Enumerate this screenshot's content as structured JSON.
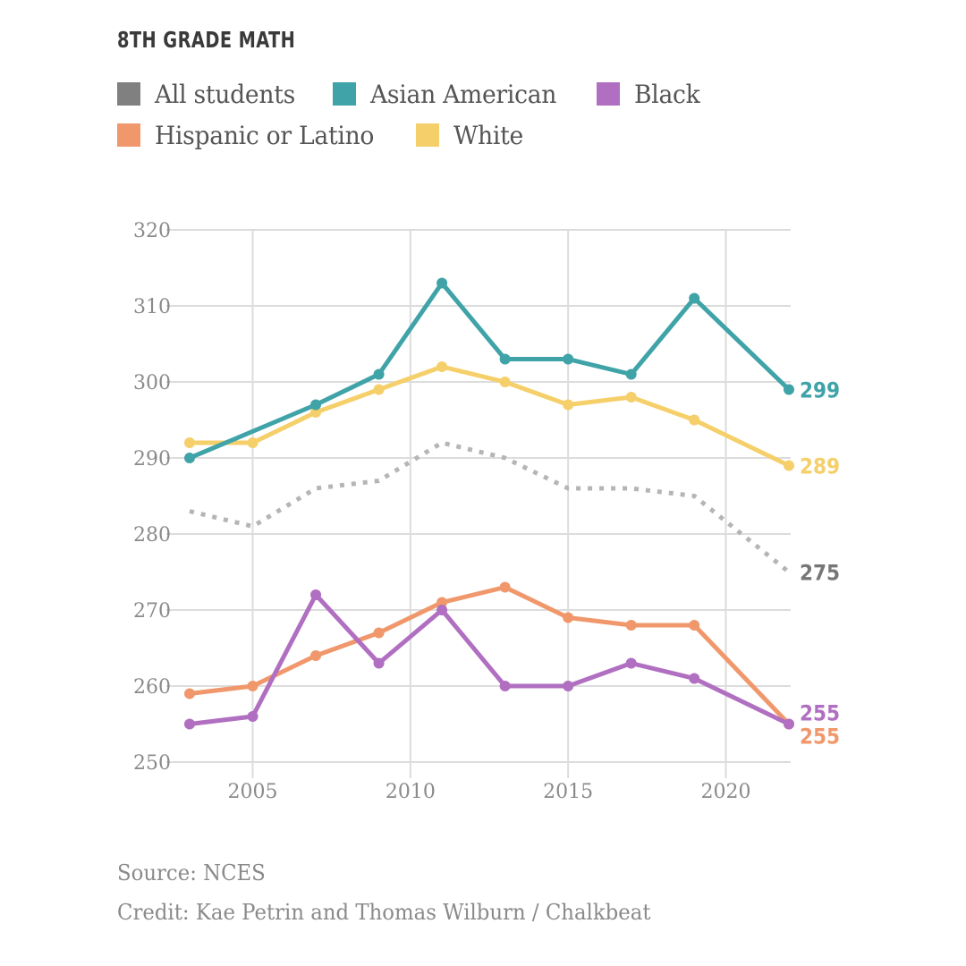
{
  "chart_data": {
    "type": "line",
    "title": "8TH GRADE MATH",
    "xlabel": "",
    "ylabel": "",
    "xlim": [
      2003,
      2022
    ],
    "ylim": [
      250,
      320
    ],
    "grid": true,
    "x_ticks": [
      2005,
      2010,
      2015,
      2020
    ],
    "y_ticks": [
      250,
      260,
      270,
      280,
      290,
      300,
      310,
      320
    ],
    "legend_position": "top-left",
    "series": [
      {
        "name": "All students",
        "color": "#808080",
        "style": "dotted",
        "markers": false,
        "points": [
          [
            2003,
            283
          ],
          [
            2005,
            281
          ],
          [
            2007,
            286
          ],
          [
            2009,
            287
          ],
          [
            2011,
            292
          ],
          [
            2013,
            290
          ],
          [
            2015,
            286
          ],
          [
            2017,
            286
          ],
          [
            2019,
            285
          ],
          [
            2022,
            275
          ]
        ],
        "end_label": "275"
      },
      {
        "name": "Asian American",
        "color": "#3fa3a8",
        "style": "solid",
        "markers": true,
        "points": [
          [
            2003,
            290
          ],
          [
            2007,
            297
          ],
          [
            2009,
            301
          ],
          [
            2011,
            313
          ],
          [
            2013,
            303
          ],
          [
            2015,
            303
          ],
          [
            2017,
            301
          ],
          [
            2019,
            311
          ],
          [
            2022,
            299
          ]
        ],
        "end_label": "299"
      },
      {
        "name": "Black",
        "color": "#b06fc0",
        "style": "solid",
        "markers": true,
        "points": [
          [
            2003,
            255
          ],
          [
            2005,
            256
          ],
          [
            2007,
            272
          ],
          [
            2009,
            263
          ],
          [
            2011,
            270
          ],
          [
            2013,
            260
          ],
          [
            2015,
            260
          ],
          [
            2017,
            263
          ],
          [
            2019,
            261
          ],
          [
            2022,
            255
          ]
        ],
        "end_label": "255"
      },
      {
        "name": "Hispanic or Latino",
        "color": "#f0986c",
        "style": "solid",
        "markers": true,
        "points": [
          [
            2003,
            259
          ],
          [
            2005,
            260
          ],
          [
            2007,
            264
          ],
          [
            2009,
            267
          ],
          [
            2011,
            271
          ],
          [
            2013,
            273
          ],
          [
            2015,
            269
          ],
          [
            2017,
            268
          ],
          [
            2019,
            268
          ],
          [
            2022,
            255
          ]
        ],
        "end_label": "255"
      },
      {
        "name": "White",
        "color": "#f5cf6a",
        "style": "solid",
        "markers": true,
        "points": [
          [
            2003,
            292
          ],
          [
            2005,
            292
          ],
          [
            2007,
            296
          ],
          [
            2009,
            299
          ],
          [
            2011,
            302
          ],
          [
            2013,
            300
          ],
          [
            2015,
            297
          ],
          [
            2017,
            298
          ],
          [
            2019,
            295
          ],
          [
            2022,
            289
          ]
        ],
        "end_label": "289"
      }
    ]
  },
  "legend": {
    "rows": [
      [
        {
          "label": "All students",
          "color": "#808080"
        },
        {
          "label": "Asian American",
          "color": "#3fa3a8"
        },
        {
          "label": "Black",
          "color": "#b06fc0"
        }
      ],
      [
        {
          "label": "Hispanic or Latino",
          "color": "#f0986c"
        },
        {
          "label": "White",
          "color": "#f5cf6a"
        }
      ]
    ]
  },
  "footer": {
    "source": "Source: NCES",
    "credit": "Credit: Kae Petrin and Thomas Wilburn / Chalkbeat"
  }
}
